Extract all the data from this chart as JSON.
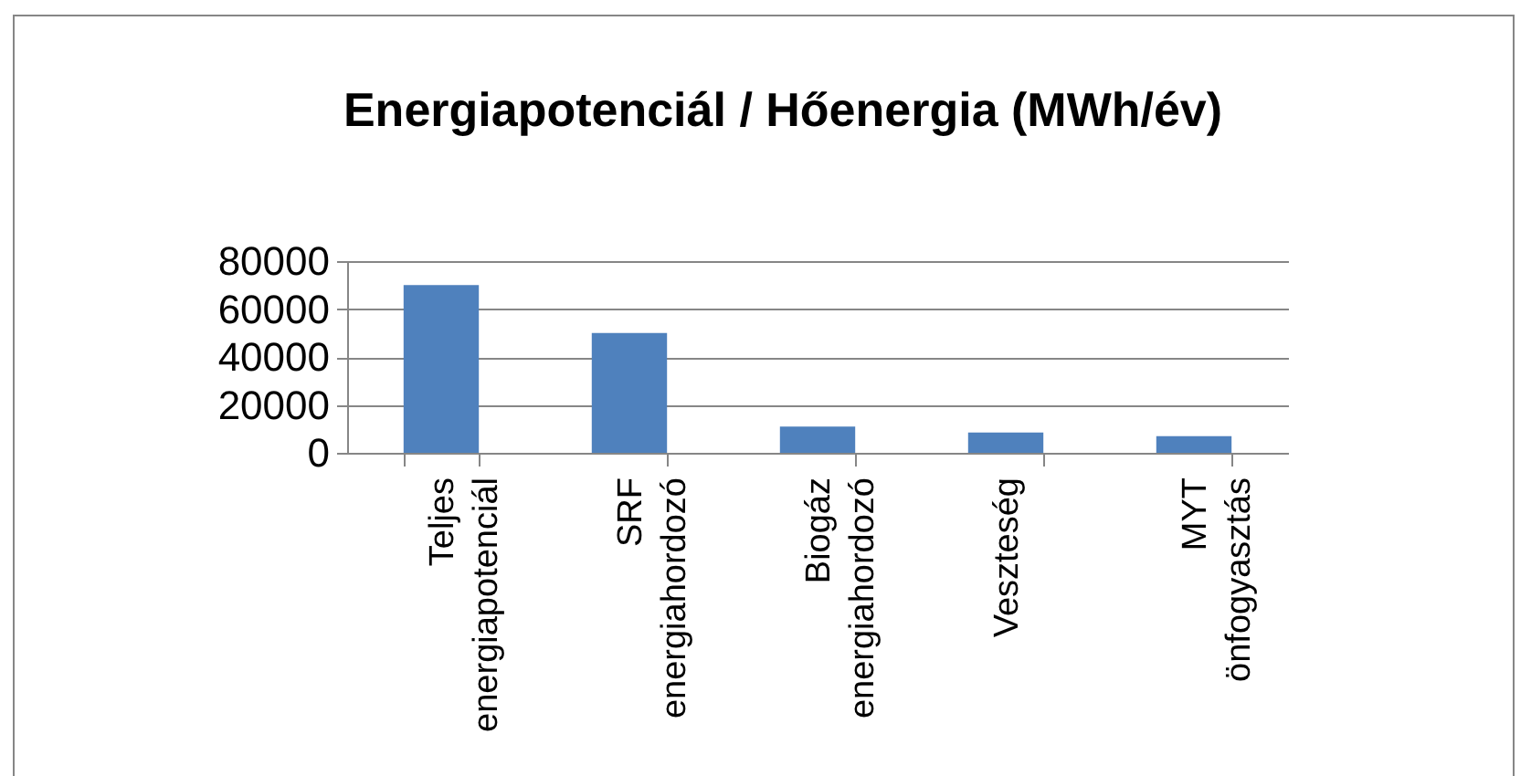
{
  "chart_data": {
    "type": "bar",
    "title": "Energiapotenciál / Hőenergia (MWh/év)",
    "categories": [
      "Teljes energiapotenciál",
      "SRF energiahordozó",
      "Biogáz energiahordozó",
      "Veszteség",
      "MYT önfogyasztás"
    ],
    "values": [
      70000,
      50000,
      11000,
      8500,
      7000
    ],
    "color": "#4f81bd",
    "ylim": [
      0,
      80000
    ],
    "yticks": [
      0,
      20000,
      40000,
      60000,
      80000
    ],
    "grid": "y"
  }
}
